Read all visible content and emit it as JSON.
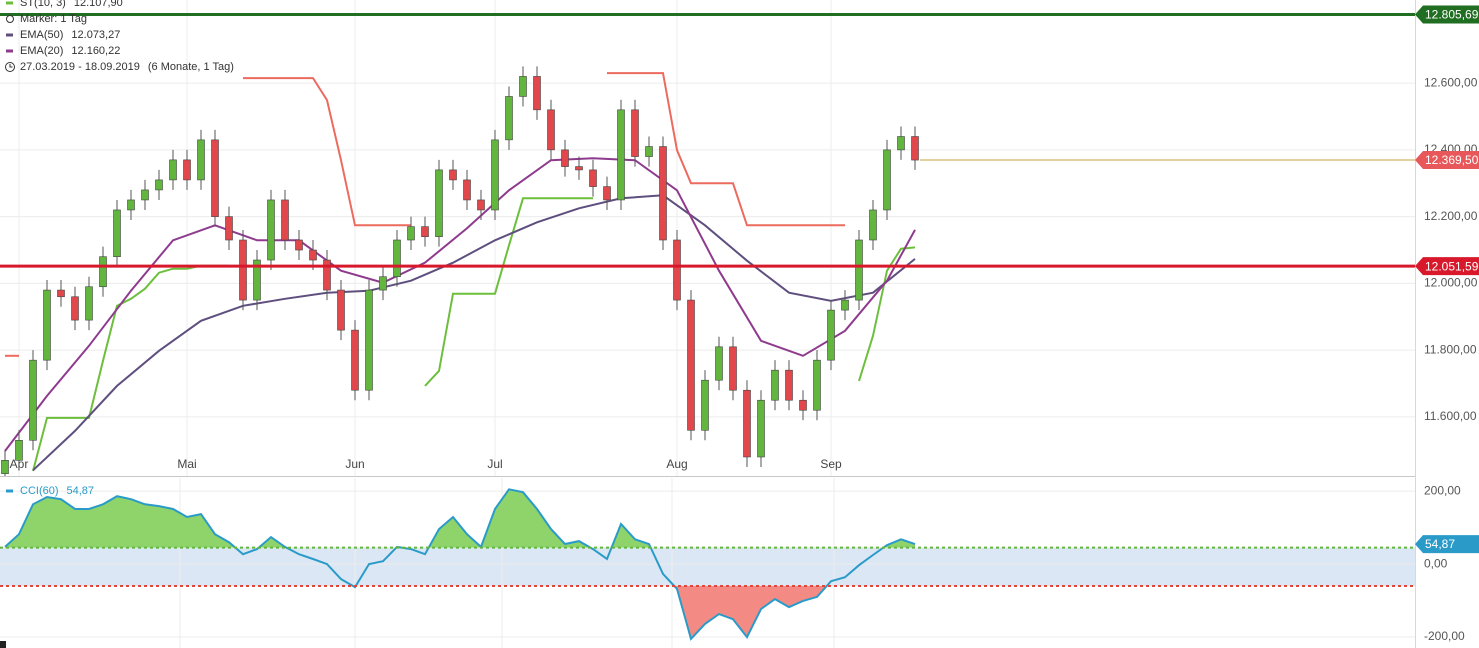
{
  "chart_data": [
    {
      "type": "candlestick",
      "categories": [
        null,
        "Apr",
        null,
        null,
        null,
        null,
        null,
        null,
        null,
        null,
        null,
        null,
        null,
        "Mai",
        null,
        null,
        null,
        null,
        null,
        null,
        null,
        null,
        null,
        null,
        null,
        "Jun",
        null,
        null,
        null,
        null,
        null,
        null,
        null,
        null,
        null,
        "Jul",
        null,
        null,
        null,
        null,
        null,
        null,
        null,
        null,
        null,
        null,
        null,
        null,
        "Aug",
        null,
        null,
        null,
        null,
        null,
        null,
        null,
        null,
        null,
        null,
        "Sep",
        null,
        null,
        null,
        null,
        null,
        null
      ],
      "open": [
        11430,
        11470,
        11530,
        11770,
        11980,
        11960,
        11890,
        11990,
        12080,
        12220,
        12250,
        12280,
        12310,
        12370,
        12310,
        12430,
        12200,
        12130,
        11950,
        12070,
        12250,
        12130,
        12100,
        12070,
        11980,
        11860,
        11680,
        11980,
        12020,
        12130,
        12170,
        12140,
        12340,
        12310,
        12250,
        12220,
        12430,
        12560,
        12620,
        12520,
        12400,
        12350,
        12340,
        12290,
        12250,
        12520,
        12380,
        12410,
        12130,
        11950,
        11560,
        11710,
        11810,
        11680,
        11480,
        11650,
        11740,
        11650,
        11620,
        11770,
        11920,
        11950,
        12130,
        12220,
        12400,
        12440
      ],
      "high": [
        11500,
        11560,
        11800,
        12010,
        12010,
        11990,
        12020,
        12110,
        12250,
        12280,
        12310,
        12340,
        12400,
        12400,
        12460,
        12460,
        12230,
        12160,
        12100,
        12280,
        12280,
        12160,
        12130,
        12100,
        12010,
        11890,
        12010,
        12050,
        12160,
        12200,
        12200,
        12370,
        12370,
        12340,
        12280,
        12460,
        12590,
        12650,
        12650,
        12550,
        12430,
        12380,
        12370,
        12320,
        12550,
        12550,
        12440,
        12440,
        12160,
        11980,
        11740,
        11840,
        11840,
        11710,
        11680,
        11770,
        11770,
        11680,
        11800,
        11950,
        11980,
        12160,
        12250,
        12430,
        12470,
        12470
      ],
      "low": [
        11400,
        11440,
        11500,
        11740,
        11930,
        11860,
        11860,
        11960,
        12050,
        12190,
        12220,
        12250,
        12280,
        12280,
        12280,
        12170,
        12100,
        11920,
        11920,
        12040,
        12100,
        12070,
        12040,
        11950,
        11830,
        11650,
        11650,
        11950,
        11990,
        12100,
        12110,
        12110,
        12280,
        12220,
        12190,
        12190,
        12400,
        12530,
        12490,
        12370,
        12320,
        12310,
        12260,
        12220,
        12220,
        12350,
        12350,
        12100,
        11920,
        11530,
        11530,
        11680,
        11650,
        11450,
        11450,
        11620,
        11620,
        11590,
        11590,
        11740,
        11890,
        11920,
        12100,
        12190,
        12370,
        12340
      ],
      "close": [
        11470,
        11530,
        11770,
        11980,
        11960,
        11890,
        11990,
        12080,
        12220,
        12250,
        12280,
        12310,
        12370,
        12310,
        12430,
        12200,
        12130,
        11950,
        12070,
        12250,
        12130,
        12100,
        12070,
        11980,
        11860,
        11680,
        11980,
        12020,
        12130,
        12170,
        12140,
        12340,
        12310,
        12250,
        12220,
        12430,
        12560,
        12620,
        12520,
        12400,
        12350,
        12340,
        12290,
        12250,
        12520,
        12380,
        12410,
        12130,
        11950,
        11560,
        11710,
        11810,
        11680,
        11480,
        11650,
        11740,
        11650,
        11620,
        11770,
        11920,
        11950,
        12130,
        12220,
        12400,
        12440,
        12369.5
      ],
      "last_label": "12.369,50",
      "up_color": "#62b63e",
      "down_color": "#e2474b",
      "last_color": "#e8575a",
      "series": [
        {
          "name": "ST(10, 3)",
          "legend_label": "12.107,90",
          "color": "#6cbf3c",
          "values": [
            null,
            null,
            11438,
            11597,
            11597,
            11597,
            11597,
            11768,
            11933,
            11954,
            11984,
            12032,
            12044,
            12044,
            12053,
            12053,
            12053,
            null,
            null,
            null,
            null,
            null,
            null,
            null,
            null,
            null,
            null,
            null,
            null,
            null,
            11693,
            11738,
            11969,
            11969,
            11969,
            11969,
            12114,
            12255,
            12255,
            12255,
            12255,
            12255,
            12255,
            null,
            null,
            null,
            null,
            null,
            null,
            null,
            null,
            null,
            null,
            null,
            null,
            null,
            null,
            null,
            null,
            null,
            null,
            11708,
            11843,
            12038,
            12104,
            12107.9
          ],
          "resistance_color": "#ec6a5e",
          "resistance_values": [
            11783,
            11783,
            null,
            null,
            null,
            null,
            null,
            null,
            null,
            null,
            null,
            null,
            null,
            null,
            null,
            null,
            null,
            12615,
            12615,
            12615,
            12615,
            12615,
            12615,
            12549,
            12369,
            12174,
            12174,
            12174,
            12174,
            12174,
            null,
            null,
            null,
            null,
            null,
            null,
            null,
            null,
            null,
            null,
            null,
            null,
            null,
            12630,
            12630,
            12630,
            12630,
            12630,
            12399,
            12300,
            12300,
            12300,
            12300,
            12174,
            12174,
            12174,
            12174,
            12174,
            12174,
            12174,
            12174,
            null,
            null,
            null,
            null,
            null
          ]
        },
        {
          "name": "EMA(50)",
          "legend_label": "12.073,27",
          "color": "#5e4f7e",
          "x": [
            2,
            5,
            8,
            11,
            14,
            17,
            20,
            23,
            26,
            29,
            32,
            35,
            38,
            41,
            44,
            47,
            50,
            53,
            56,
            59,
            62,
            65
          ],
          "values": [
            11440,
            11558,
            11693,
            11798,
            11888,
            11933,
            11954,
            11972,
            11978,
            12008,
            12062,
            12129,
            12183,
            12225,
            12255,
            12264,
            12174,
            12068,
            11972,
            11948,
            11972,
            12073.27
          ]
        },
        {
          "name": "EMA(20)",
          "legend_label": "12.160,22",
          "color": "#8e3b8e",
          "x": [
            0,
            3,
            6,
            9,
            12,
            15,
            18,
            21,
            24,
            27,
            30,
            33,
            36,
            39,
            42,
            45,
            48,
            51,
            54,
            57,
            60,
            63,
            65
          ],
          "values": [
            11498,
            11663,
            11813,
            11978,
            12129,
            12174,
            12129,
            12129,
            12038,
            12002,
            12062,
            12165,
            12279,
            12369,
            12375,
            12369,
            12279,
            12038,
            11828,
            11783,
            11858,
            12008,
            12160.22
          ]
        }
      ],
      "marker_label": "Marker: 1 Tag",
      "date_range": "27.03.2019 - 18.09.2019",
      "period": "(6 Monate, 1 Tag)",
      "levels": [
        {
          "value": 12805.69,
          "label": "12.805,69",
          "color": "#1f6e22"
        },
        {
          "value": 12051.59,
          "label": "12.051,59",
          "color": "#d8192b"
        }
      ],
      "ylim": [
        11423,
        12849
      ],
      "yticks": [
        {
          "value": 11600,
          "label": "11.600,00"
        },
        {
          "value": 11800,
          "label": "11.800,00"
        },
        {
          "value": 12000,
          "label": "12.000,00"
        },
        {
          "value": 12200,
          "label": "12.200,00"
        },
        {
          "value": 12400,
          "label": "12.400,00"
        },
        {
          "value": 12600,
          "label": "12.600,00"
        }
      ],
      "grid": true
    },
    {
      "type": "line",
      "series": [
        {
          "name": "CCI(60)",
          "legend_label": "54,87",
          "color": "#2a9bc9",
          "values": [
            47,
            82,
            164,
            184,
            178,
            151,
            151,
            164,
            186,
            178,
            164,
            159,
            151,
            129,
            137,
            82,
            60,
            27,
            41,
            74,
            47,
            27,
            14,
            0,
            -41,
            -63,
            0,
            8,
            47,
            41,
            27,
            96,
            129,
            82,
            47,
            151,
            205,
            197,
            151,
            96,
            55,
            63,
            41,
            14,
            110,
            68,
            55,
            -27,
            -68,
            -205,
            -164,
            -137,
            -151,
            -200,
            -123,
            -96,
            -118,
            -101,
            -90,
            -47,
            -36,
            -3,
            25,
            52,
            68,
            54.87
          ],
          "last_label": "54,87"
        }
      ],
      "levels": [
        {
          "value": 45,
          "color": "#62b63e",
          "fill": "#8fd46a"
        },
        {
          "value": -60,
          "color": "#e0463a",
          "fill": "#f38b84"
        }
      ],
      "band_color": "#dbe7f4",
      "ylim": [
        -230,
        236
      ],
      "yticks": [
        {
          "value": -200,
          "label": "-200,00"
        },
        {
          "value": 0,
          "label": "0,00"
        },
        {
          "value": 200,
          "label": "200,00"
        }
      ],
      "grid": true
    }
  ]
}
